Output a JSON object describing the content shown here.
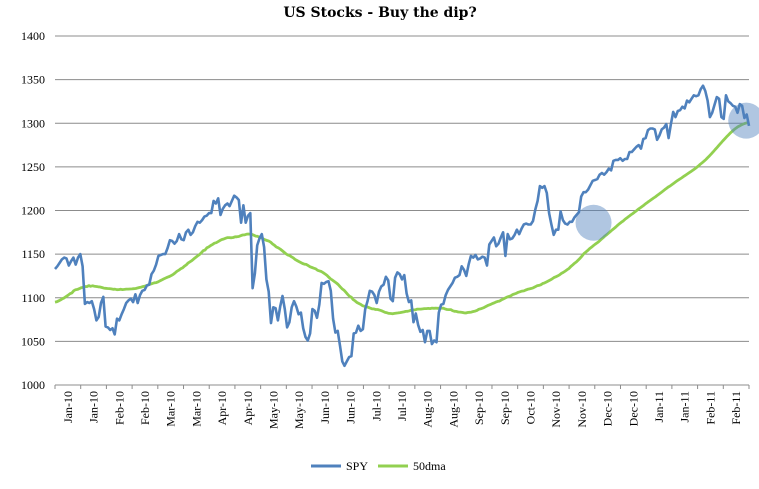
{
  "chart_data": {
    "type": "line",
    "title": "US Stocks  - Buy the dip?",
    "ylim": [
      1000,
      1400
    ],
    "y_ticks": [
      1000,
      1050,
      1100,
      1150,
      1200,
      1250,
      1300,
      1350,
      1400
    ],
    "x_tick_labels": [
      "Jan-10",
      "Jan-10",
      "Feb-10",
      "Feb-10",
      "Mar-10",
      "Mar-10",
      "Apr-10",
      "Apr-10",
      "May-10",
      "May-10",
      "Jun-10",
      "Jun-10",
      "Jul-10",
      "Jul-10",
      "Aug-10",
      "Aug-10",
      "Sep-10",
      "Sep-10",
      "Oct-10",
      "Nov-10",
      "Nov-10",
      "Dec-10",
      "Dec-10",
      "Jan-11",
      "Jan-11",
      "Feb-11",
      "Feb-11"
    ],
    "grid": "horizontal",
    "legend_position": "bottom",
    "series": [
      {
        "name": "SPY",
        "color": "#4f81bd",
        "values": [
          1133,
          1136,
          1140,
          1144,
          1146,
          1145,
          1137,
          1142,
          1146,
          1138,
          1146,
          1150,
          1136,
          1093,
          1095,
          1094,
          1096,
          1087,
          1074,
          1078,
          1094,
          1101,
          1067,
          1066,
          1063,
          1065,
          1058,
          1076,
          1074,
          1081,
          1087,
          1094,
          1097,
          1099,
          1095,
          1104,
          1094,
          1103,
          1108,
          1109,
          1114,
          1115,
          1127,
          1131,
          1138,
          1148,
          1149,
          1150,
          1150,
          1157,
          1166,
          1165,
          1162,
          1165,
          1173,
          1167,
          1166,
          1175,
          1178,
          1172,
          1175,
          1182,
          1187,
          1186,
          1189,
          1193,
          1194,
          1197,
          1197,
          1211,
          1208,
          1214,
          1195,
          1202,
          1206,
          1208,
          1205,
          1211,
          1217,
          1215,
          1212,
          1186,
          1206,
          1186,
          1194,
          1197,
          1111,
          1128,
          1160,
          1168,
          1173,
          1158,
          1121,
          1107,
          1071,
          1089,
          1088,
          1074,
          1090,
          1102,
          1087,
          1066,
          1072,
          1089,
          1096,
          1090,
          1081,
          1083,
          1065,
          1055,
          1051,
          1059,
          1087,
          1085,
          1077,
          1092,
          1117,
          1116,
          1118,
          1119,
          1108,
          1076,
          1060,
          1062,
          1045,
          1027,
          1022,
          1027,
          1032,
          1033,
          1059,
          1060,
          1068,
          1062,
          1064,
          1087,
          1096,
          1108,
          1107,
          1103,
          1094,
          1107,
          1113,
          1115,
          1124,
          1120,
          1099,
          1096,
          1123,
          1129,
          1127,
          1121,
          1126,
          1105,
          1095,
          1097,
          1072,
          1082,
          1069,
          1061,
          1063,
          1049,
          1062,
          1062,
          1047,
          1051,
          1049,
          1083,
          1092,
          1093,
          1103,
          1109,
          1113,
          1117,
          1123,
          1124,
          1126,
          1136,
          1132,
          1125,
          1138,
          1148,
          1146,
          1149,
          1144,
          1145,
          1147,
          1146,
          1137,
          1161,
          1165,
          1169,
          1159,
          1162,
          1169,
          1175,
          1148,
          1173,
          1167,
          1168,
          1172,
          1178,
          1173,
          1179,
          1184,
          1185,
          1184,
          1184,
          1188,
          1201,
          1211,
          1228,
          1226,
          1228,
          1220,
          1197,
          1184,
          1172,
          1178,
          1178,
          1199,
          1189,
          1185,
          1184,
          1187,
          1187,
          1192,
          1195,
          1198,
          1216,
          1221,
          1221,
          1224,
          1229,
          1234,
          1235,
          1236,
          1241,
          1243,
          1241,
          1244,
          1248,
          1246,
          1257,
          1258,
          1258,
          1260,
          1257,
          1259,
          1259,
          1267,
          1267,
          1270,
          1273,
          1275,
          1271,
          1282,
          1283,
          1292,
          1294,
          1294,
          1293,
          1281,
          1286,
          1293,
          1295,
          1299,
          1283,
          1299,
          1313,
          1307,
          1314,
          1315,
          1319,
          1317,
          1326,
          1324,
          1328,
          1332,
          1331,
          1332,
          1339,
          1343,
          1337,
          1326,
          1307,
          1312,
          1321,
          1330,
          1328,
          1307,
          1305,
          1332,
          1325,
          1323,
          1320,
          1319,
          1312,
          1322,
          1320,
          1306,
          1310,
          1297
        ]
      },
      {
        "name": "50dma",
        "color": "#92d050",
        "values": [
          1095,
          1095.5,
          1096.5,
          1097.5,
          1098.9,
          1100,
          1101.5,
          1102.9,
          1104.6,
          1105.6,
          1108.1,
          1109.2,
          1109.6,
          1110.5,
          1111.5,
          1112,
          1112.9,
          1112.8,
          1113.9,
          1113.1,
          1113.7,
          1113.2,
          1112.9,
          1112.5,
          1112.3,
          1111.8,
          1111.1,
          1110.8,
          1110.6,
          1110.5,
          1110.2,
          1109.7,
          1109.8,
          1109.2,
          1109.3,
          1109.8,
          1109.3,
          1109.6,
          1109.9,
          1109.9,
          1110,
          1110.1,
          1110.4,
          1110.6,
          1111.2,
          1111.7,
          1112.2,
          1112.9,
          1113.4,
          1114.1,
          1114.9,
          1115.6,
          1116.5,
          1117.1,
          1117.4,
          1118.3,
          1119.4,
          1120.5,
          1121.6,
          1122.6,
          1123.5,
          1124.3,
          1125.5,
          1126.8,
          1128.4,
          1130.3,
          1131.6,
          1133.2,
          1134.2,
          1136.2,
          1137.6,
          1140,
          1141.2,
          1142.6,
          1144.5,
          1146.3,
          1148,
          1149.4,
          1151.5,
          1153.9,
          1154.7,
          1157.3,
          1158.3,
          1159.9,
          1161.2,
          1162.5,
          1163.1,
          1164.3,
          1165.7,
          1166.8,
          1167.3,
          1168.3,
          1168.9,
          1168.9,
          1168.7,
          1169.1,
          1169.8,
          1169.8,
          1170.2,
          1171.1,
          1171.9,
          1172,
          1172.7,
          1173.1,
          1172.9,
          1172.6,
          1171.7,
          1170.7,
          1170.4,
          1169.3,
          1168.8,
          1167.4,
          1166.4,
          1165.6,
          1164.9,
          1163.7,
          1161.6,
          1160.1,
          1158.2,
          1157.2,
          1155.9,
          1154.2,
          1152.4,
          1150.6,
          1149.1,
          1148.4,
          1147.1,
          1145.8,
          1143.9,
          1142.7,
          1141.5,
          1140.4,
          1139.3,
          1138.5,
          1138.2,
          1136.8,
          1135.5,
          1134.7,
          1133.9,
          1133.2,
          1131.5,
          1130.8,
          1130.1,
          1128.7,
          1127.2,
          1125.6,
          1123.6,
          1121.5,
          1120.1,
          1118.5,
          1116.9,
          1115.2,
          1112.7,
          1110.4,
          1108.8,
          1106.5,
          1104,
          1101.7,
          1100.5,
          1097.9,
          1096.4,
          1094.5,
          1093.4,
          1092.4,
          1090.8,
          1090.3,
          1089.9,
          1089,
          1088.1,
          1087.3,
          1087.2,
          1086.5,
          1086.5,
          1085.8,
          1085.2,
          1084.2,
          1083.2,
          1082.7,
          1082.1,
          1081.9,
          1081.6,
          1082.1,
          1082.4,
          1082.6,
          1083,
          1083.4,
          1083.8,
          1084.3,
          1084.5,
          1085,
          1085.9,
          1086.1,
          1086.1,
          1086.9,
          1087,
          1087,
          1087.2,
          1087.6,
          1087.6,
          1087.8,
          1087.6,
          1088.1,
          1087.9,
          1088.1,
          1087.9,
          1088.1,
          1088,
          1088,
          1087.2,
          1086.5,
          1086.4,
          1086.4,
          1085.2,
          1084.5,
          1084.3,
          1083.7,
          1083.5,
          1083.2,
          1082.7,
          1082.5,
          1083.1,
          1083.3,
          1083.6,
          1084.2,
          1084.7,
          1085.5,
          1086.9,
          1087.3,
          1088.1,
          1089.1,
          1090.2,
          1091.3,
          1092.2,
          1093.2,
          1094,
          1095,
          1095.8,
          1096.2,
          1097.5,
          1098.6,
          1099.7,
          1100.8,
          1101.5,
          1102.2,
          1103.6,
          1104.4,
          1105.1,
          1106.3,
          1106.9,
          1107.6,
          1107.9,
          1108.9,
          1109.7,
          1110.2,
          1110.7,
          1111.4,
          1112.5,
          1113.7,
          1114.2,
          1114.8,
          1116.3,
          1117,
          1118.1,
          1119.2,
          1120.4,
          1121.6,
          1123.1,
          1124,
          1125,
          1126.3,
          1127.9,
          1129.1,
          1130.5,
          1132.1,
          1133.4,
          1135.8,
          1137.7,
          1139.6,
          1141.1,
          1143.3,
          1145.4,
          1148,
          1150.6,
          1152.3,
          1154.1,
          1156.3,
          1157.8,
          1159.6,
          1161.4,
          1162.9,
          1164.5,
          1166.5,
          1168.4,
          1170.4,
          1172,
          1173.9,
          1175.7,
          1177.7,
          1179.4,
          1181.1,
          1183.2,
          1185,
          1186.7,
          1188.1,
          1190.1,
          1191.7,
          1193.3,
          1194.9,
          1196.5,
          1198.2,
          1199.8,
          1201.5,
          1203,
          1204.6,
          1206.2,
          1207.9,
          1209.5,
          1211,
          1212.6,
          1214.1,
          1215.5,
          1217.2,
          1218.8,
          1220.3,
          1222,
          1223.7,
          1225.3,
          1226.9,
          1228.2,
          1229.8,
          1231.4,
          1232.9,
          1234.5,
          1235.9,
          1237.3,
          1238.8,
          1240.2,
          1241.7,
          1243.2,
          1244.6,
          1246.1,
          1247.6,
          1249.3,
          1251,
          1252.9,
          1254.7,
          1256.5,
          1258.5,
          1260.6,
          1262.8,
          1265.1,
          1267.5,
          1269.9,
          1272.3,
          1274.8,
          1277.2,
          1279.6,
          1282,
          1284.4,
          1286.5,
          1288.7,
          1290.7,
          1292.6,
          1294.3,
          1295.8,
          1297,
          1298.2,
          1299.1,
          1300,
          1300.5,
          1301
        ]
      }
    ],
    "highlights": [
      {
        "x_fraction": 0.776,
        "y": 1186
      },
      {
        "x_fraction": 0.996,
        "y": 1303
      }
    ]
  }
}
